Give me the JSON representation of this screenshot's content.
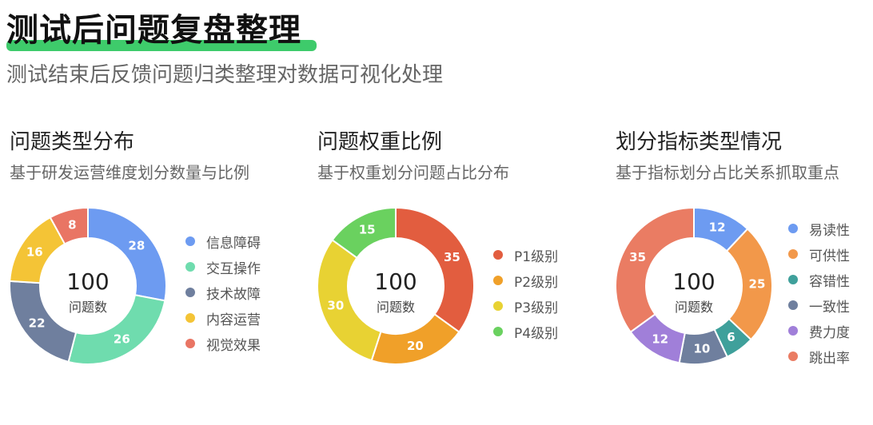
{
  "header": {
    "title": "测试后问题复盘整理",
    "subtitle": "测试结束后反馈问题归类整理对数据可视化处理",
    "accent": "#3ecb6b"
  },
  "chart_data": [
    {
      "type": "pie",
      "title": "问题类型分布",
      "subtitle": "基于研发运营维度划分数量与比例",
      "center_value": "100",
      "center_label": "问题数",
      "categories": [
        "信息障碍",
        "交互操作",
        "技术故障",
        "内容运营",
        "视觉效果"
      ],
      "values": [
        28,
        26,
        22,
        16,
        8
      ],
      "colors": [
        "#6d9bf1",
        "#6fdcae",
        "#6f7f9e",
        "#f4c436",
        "#e97564"
      ]
    },
    {
      "type": "pie",
      "title": "问题权重比例",
      "subtitle": "基于权重划分问题占比分布",
      "center_value": "100",
      "center_label": "问题数",
      "categories": [
        "P1级别",
        "P2级别",
        "P3级别",
        "P4级别"
      ],
      "values": [
        35,
        20,
        30,
        15
      ],
      "colors": [
        "#e25d3f",
        "#f0a029",
        "#e8d233",
        "#6ad15f"
      ]
    },
    {
      "type": "pie",
      "title": "划分指标类型情况",
      "subtitle": "基于指标划分占比关系抓取重点",
      "center_value": "100",
      "center_label": "问题数",
      "categories": [
        "易读性",
        "可供性",
        "容错性",
        "一致性",
        "费力度",
        "跳出率"
      ],
      "values": [
        12,
        25,
        6,
        10,
        12,
        35
      ],
      "colors": [
        "#6d9bf1",
        "#f2984a",
        "#3fa09b",
        "#6f7f9e",
        "#a07fd9",
        "#ea7c63"
      ]
    }
  ]
}
